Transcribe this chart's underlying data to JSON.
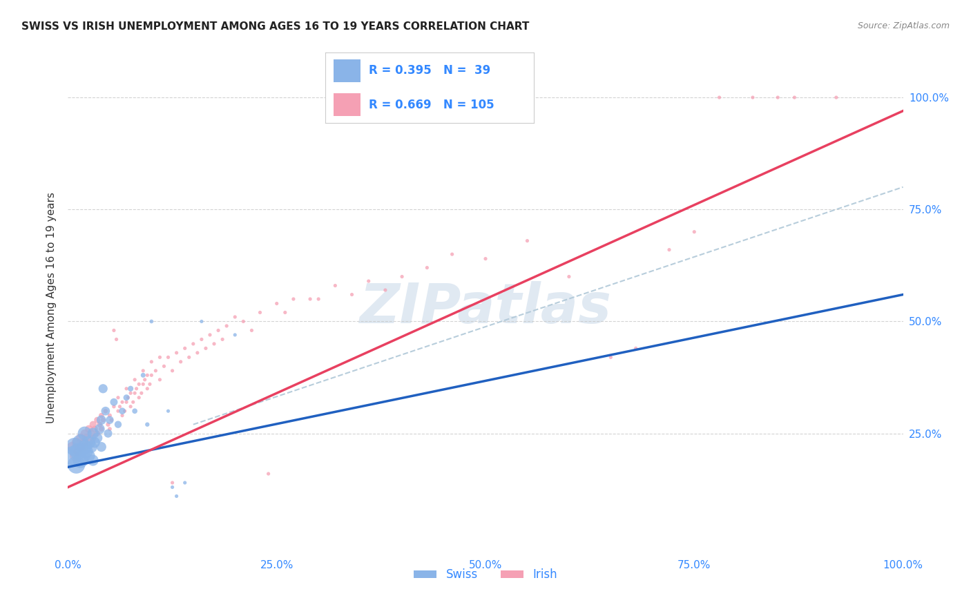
{
  "title": "SWISS VS IRISH UNEMPLOYMENT AMONG AGES 16 TO 19 YEARS CORRELATION CHART",
  "source": "Source: ZipAtlas.com",
  "ylabel": "Unemployment Among Ages 16 to 19 years",
  "xlim": [
    0,
    1
  ],
  "ylim": [
    -0.02,
    1.08
  ],
  "swiss_R": 0.395,
  "swiss_N": 39,
  "irish_R": 0.669,
  "irish_N": 105,
  "swiss_color": "#8ab4e8",
  "irish_color": "#f5a0b4",
  "swiss_line_color": "#2060c0",
  "irish_line_color": "#e84060",
  "ref_line_color": "#b0c8d8",
  "background_color": "#ffffff",
  "grid_color": "#c8c8c8",
  "tick_label_color": "#3388ff",
  "title_color": "#222222",
  "watermark_color": "#c8d8e8",
  "swiss_scatter": [
    [
      0.005,
      0.2
    ],
    [
      0.008,
      0.22
    ],
    [
      0.01,
      0.18
    ],
    [
      0.012,
      0.21
    ],
    [
      0.015,
      0.23
    ],
    [
      0.015,
      0.19
    ],
    [
      0.018,
      0.2
    ],
    [
      0.02,
      0.22
    ],
    [
      0.02,
      0.25
    ],
    [
      0.022,
      0.21
    ],
    [
      0.025,
      0.23
    ],
    [
      0.025,
      0.2
    ],
    [
      0.028,
      0.22
    ],
    [
      0.03,
      0.25
    ],
    [
      0.03,
      0.19
    ],
    [
      0.032,
      0.23
    ],
    [
      0.035,
      0.24
    ],
    [
      0.038,
      0.26
    ],
    [
      0.04,
      0.22
    ],
    [
      0.04,
      0.28
    ],
    [
      0.042,
      0.35
    ],
    [
      0.045,
      0.3
    ],
    [
      0.048,
      0.25
    ],
    [
      0.05,
      0.28
    ],
    [
      0.055,
      0.32
    ],
    [
      0.06,
      0.27
    ],
    [
      0.065,
      0.3
    ],
    [
      0.07,
      0.33
    ],
    [
      0.075,
      0.35
    ],
    [
      0.08,
      0.3
    ],
    [
      0.09,
      0.38
    ],
    [
      0.095,
      0.27
    ],
    [
      0.1,
      0.5
    ],
    [
      0.12,
      0.3
    ],
    [
      0.125,
      0.13
    ],
    [
      0.13,
      0.11
    ],
    [
      0.14,
      0.14
    ],
    [
      0.16,
      0.5
    ],
    [
      0.2,
      0.47
    ]
  ],
  "irish_scatter": [
    [
      0.005,
      0.22
    ],
    [
      0.008,
      0.2
    ],
    [
      0.01,
      0.23
    ],
    [
      0.012,
      0.21
    ],
    [
      0.015,
      0.24
    ],
    [
      0.015,
      0.22
    ],
    [
      0.018,
      0.23
    ],
    [
      0.02,
      0.25
    ],
    [
      0.02,
      0.22
    ],
    [
      0.022,
      0.24
    ],
    [
      0.025,
      0.26
    ],
    [
      0.025,
      0.23
    ],
    [
      0.028,
      0.25
    ],
    [
      0.03,
      0.27
    ],
    [
      0.03,
      0.24
    ],
    [
      0.032,
      0.26
    ],
    [
      0.035,
      0.28
    ],
    [
      0.035,
      0.25
    ],
    [
      0.038,
      0.27
    ],
    [
      0.04,
      0.29
    ],
    [
      0.04,
      0.26
    ],
    [
      0.042,
      0.28
    ],
    [
      0.045,
      0.3
    ],
    [
      0.048,
      0.27
    ],
    [
      0.05,
      0.29
    ],
    [
      0.05,
      0.26
    ],
    [
      0.052,
      0.28
    ],
    [
      0.055,
      0.31
    ],
    [
      0.055,
      0.48
    ],
    [
      0.058,
      0.46
    ],
    [
      0.06,
      0.3
    ],
    [
      0.06,
      0.33
    ],
    [
      0.062,
      0.31
    ],
    [
      0.065,
      0.29
    ],
    [
      0.065,
      0.32
    ],
    [
      0.068,
      0.3
    ],
    [
      0.07,
      0.32
    ],
    [
      0.07,
      0.35
    ],
    [
      0.072,
      0.33
    ],
    [
      0.075,
      0.31
    ],
    [
      0.075,
      0.34
    ],
    [
      0.078,
      0.32
    ],
    [
      0.08,
      0.34
    ],
    [
      0.08,
      0.37
    ],
    [
      0.082,
      0.35
    ],
    [
      0.085,
      0.33
    ],
    [
      0.085,
      0.36
    ],
    [
      0.088,
      0.34
    ],
    [
      0.09,
      0.36
    ],
    [
      0.09,
      0.39
    ],
    [
      0.092,
      0.37
    ],
    [
      0.095,
      0.35
    ],
    [
      0.095,
      0.38
    ],
    [
      0.098,
      0.36
    ],
    [
      0.1,
      0.38
    ],
    [
      0.1,
      0.41
    ],
    [
      0.105,
      0.39
    ],
    [
      0.11,
      0.37
    ],
    [
      0.11,
      0.42
    ],
    [
      0.115,
      0.4
    ],
    [
      0.12,
      0.42
    ],
    [
      0.125,
      0.39
    ],
    [
      0.125,
      0.14
    ],
    [
      0.13,
      0.43
    ],
    [
      0.135,
      0.41
    ],
    [
      0.14,
      0.44
    ],
    [
      0.145,
      0.42
    ],
    [
      0.15,
      0.45
    ],
    [
      0.155,
      0.43
    ],
    [
      0.16,
      0.46
    ],
    [
      0.165,
      0.44
    ],
    [
      0.17,
      0.47
    ],
    [
      0.175,
      0.45
    ],
    [
      0.18,
      0.48
    ],
    [
      0.185,
      0.46
    ],
    [
      0.19,
      0.49
    ],
    [
      0.2,
      0.51
    ],
    [
      0.21,
      0.5
    ],
    [
      0.22,
      0.48
    ],
    [
      0.23,
      0.52
    ],
    [
      0.24,
      0.16
    ],
    [
      0.25,
      0.54
    ],
    [
      0.26,
      0.52
    ],
    [
      0.27,
      0.55
    ],
    [
      0.29,
      0.55
    ],
    [
      0.3,
      0.55
    ],
    [
      0.32,
      0.58
    ],
    [
      0.34,
      0.56
    ],
    [
      0.36,
      0.59
    ],
    [
      0.38,
      0.57
    ],
    [
      0.4,
      0.6
    ],
    [
      0.43,
      0.62
    ],
    [
      0.46,
      0.65
    ],
    [
      0.5,
      0.64
    ],
    [
      0.55,
      0.68
    ],
    [
      0.6,
      0.6
    ],
    [
      0.65,
      0.42
    ],
    [
      0.68,
      0.44
    ],
    [
      0.72,
      0.66
    ],
    [
      0.75,
      0.7
    ],
    [
      0.78,
      1.0
    ],
    [
      0.82,
      1.0
    ],
    [
      0.85,
      1.0
    ],
    [
      0.87,
      1.0
    ],
    [
      0.92,
      1.0
    ]
  ],
  "swiss_sizes": [
    280,
    260,
    240,
    220,
    200,
    180,
    170,
    160,
    150,
    140,
    130,
    120,
    110,
    100,
    95,
    90,
    85,
    80,
    75,
    70,
    65,
    60,
    55,
    50,
    45,
    40,
    35,
    30,
    25,
    22,
    18,
    15,
    12,
    10,
    10,
    10,
    10,
    10,
    10
  ],
  "irish_sizes": [
    80,
    75,
    70,
    65,
    60,
    58,
    55,
    52,
    50,
    48,
    45,
    42,
    40,
    38,
    35,
    32,
    30,
    28,
    25,
    22,
    20,
    18,
    16,
    15,
    14,
    13,
    12,
    11,
    10,
    10,
    10,
    10,
    10,
    10,
    10,
    10,
    10,
    10,
    10,
    10,
    10,
    10,
    10,
    10,
    10,
    10,
    10,
    10,
    10,
    10,
    10,
    10,
    10,
    10,
    10,
    10,
    10,
    10,
    10,
    10,
    10,
    10,
    10,
    10,
    10,
    10,
    10,
    10,
    10,
    10,
    10,
    10,
    10,
    10,
    10,
    10,
    10,
    10,
    10,
    10,
    10,
    10,
    10,
    10,
    10,
    10,
    10,
    10,
    10,
    10,
    10,
    10,
    10,
    10,
    10,
    10,
    10,
    10,
    10,
    10,
    10,
    10,
    10,
    10,
    10
  ],
  "swiss_line": [
    0.0,
    0.175,
    1.0,
    0.56
  ],
  "irish_line": [
    0.0,
    0.13,
    1.0,
    0.97
  ],
  "ref_line": [
    0.15,
    0.27,
    1.0,
    0.8
  ]
}
